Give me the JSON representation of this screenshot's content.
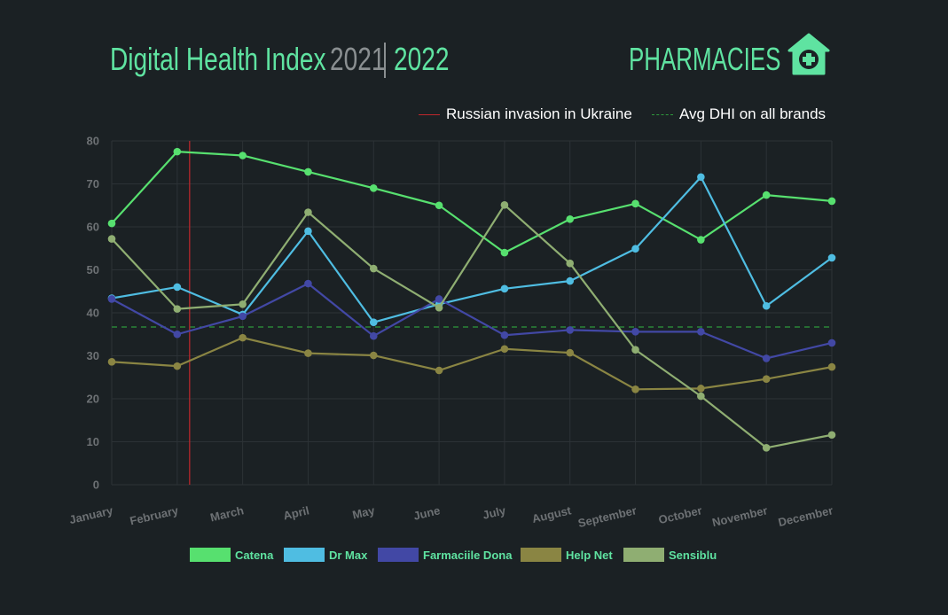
{
  "header": {
    "title": "Digital Health Index",
    "year_prev": "2021",
    "year_curr": "2022",
    "section": "PHARMACIES",
    "section_icon": "pharmacy-house-cross-icon"
  },
  "reference_legend": {
    "invasion_label": "Russian invasion in Ukraine",
    "avg_label": "Avg DHI on all brands"
  },
  "colors": {
    "title": "#5fe3a1",
    "muted": "#8a8f91",
    "invasion_line": "#c0272d",
    "avg_line": "#2e9a3c",
    "background": "#1b2124"
  },
  "chart_data": {
    "type": "line",
    "categories": [
      "January",
      "February",
      "March",
      "April",
      "May",
      "June",
      "July",
      "August",
      "September",
      "October",
      "November",
      "December"
    ],
    "ylim": [
      0,
      80
    ],
    "yticks": [
      "0",
      "10",
      "20",
      "30",
      "40",
      "50",
      "60",
      "70",
      "80"
    ],
    "grid": true,
    "legend_position": "bottom",
    "reference_lines": {
      "invasion_x": "February",
      "avg_dhi": 36.7
    },
    "series": [
      {
        "name": "Catena",
        "color": "#57e06f",
        "values": [
          60.8,
          77.5,
          76.6,
          72.8,
          69.0,
          65.0,
          54.0,
          61.8,
          65.4,
          57.0,
          67.4,
          66.0
        ]
      },
      {
        "name": "Dr Max",
        "color": "#4fbde2",
        "values": [
          43.4,
          46.0,
          39.6,
          59.0,
          37.8,
          42.0,
          45.6,
          47.4,
          54.9,
          71.6,
          41.6,
          52.8
        ]
      },
      {
        "name": "Farmaciile Dona",
        "color": "#4248a5",
        "values": [
          43.2,
          35.0,
          39.2,
          46.8,
          34.6,
          43.2,
          34.8,
          36.0,
          35.6,
          35.6,
          29.4,
          33.0
        ]
      },
      {
        "name": "Help Net",
        "color": "#8a8543",
        "values": [
          28.6,
          27.6,
          34.2,
          30.6,
          30.1,
          26.6,
          31.6,
          30.7,
          22.2,
          22.4,
          24.6,
          27.4
        ]
      },
      {
        "name": "Sensiblu",
        "color": "#8fae72",
        "values": [
          57.2,
          40.9,
          42.0,
          63.4,
          50.3,
          41.2,
          65.1,
          51.5,
          31.4,
          20.6,
          8.6,
          11.6
        ]
      }
    ]
  }
}
